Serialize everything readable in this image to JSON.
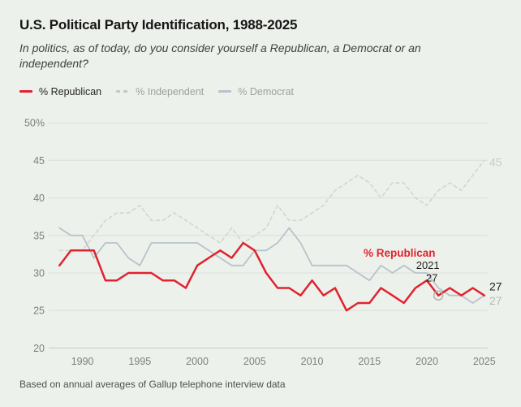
{
  "header": {
    "title": "U.S. Political Party Identification, 1988-2025",
    "subtitle": "In politics, as of today, do you consider yourself a Republican, a Democrat or an independent?"
  },
  "legend": [
    {
      "label": "% Republican"
    },
    {
      "label": "% Independent"
    },
    {
      "label": "% Democrat"
    }
  ],
  "chart_data": {
    "type": "line",
    "x_start_year": 1988,
    "x": [
      1988,
      1989,
      1990,
      1991,
      1992,
      1993,
      1994,
      1995,
      1996,
      1997,
      1998,
      1999,
      2000,
      2001,
      2002,
      2003,
      2004,
      2005,
      2006,
      2007,
      2008,
      2009,
      2010,
      2011,
      2012,
      2013,
      2014,
      2015,
      2016,
      2017,
      2018,
      2019,
      2020,
      2021,
      2022,
      2023,
      2024,
      2025
    ],
    "series": [
      {
        "name": "Independent",
        "key": "independent",
        "color": "#d2d8d0",
        "dash": "4,4",
        "width": 1.7,
        "values": [
          33,
          33,
          33,
          35,
          37,
          38,
          38,
          39,
          37,
          37,
          38,
          37,
          36,
          35,
          34,
          36,
          34,
          35,
          36,
          39,
          37,
          37,
          38,
          39,
          41,
          42,
          43,
          42,
          40,
          42,
          42,
          40,
          39,
          41,
          42,
          41,
          43,
          45
        ]
      },
      {
        "name": "Democrat",
        "key": "democrat",
        "color": "#b8c2cb",
        "dash": "",
        "width": 1.8,
        "values": [
          36,
          35,
          35,
          32,
          34,
          34,
          32,
          31,
          34,
          34,
          34,
          34,
          34,
          33,
          32,
          31,
          31,
          33,
          33,
          34,
          36,
          34,
          31,
          31,
          31,
          31,
          30,
          29,
          31,
          30,
          31,
          30,
          30,
          28,
          27,
          27,
          26,
          27
        ]
      },
      {
        "name": "Republican",
        "key": "republican",
        "color": "#e02330",
        "dash": "",
        "width": 2.5,
        "values": [
          31,
          33,
          33,
          33,
          29,
          29,
          30,
          30,
          30,
          29,
          29,
          28,
          31,
          32,
          33,
          32,
          34,
          33,
          30,
          28,
          28,
          27,
          29,
          27,
          28,
          25,
          26,
          26,
          28,
          27,
          26,
          28,
          29,
          27,
          28,
          27,
          28,
          27
        ]
      }
    ],
    "ylim": [
      20,
      50
    ],
    "yticks": [
      {
        "value": 50,
        "label": "50%"
      },
      {
        "value": 45,
        "label": "45"
      },
      {
        "value": 40,
        "label": "40"
      },
      {
        "value": 35,
        "label": "35"
      },
      {
        "value": 30,
        "label": "30"
      },
      {
        "value": 25,
        "label": "25"
      },
      {
        "value": 20,
        "label": "20"
      }
    ],
    "xticks": [
      {
        "value": 1990,
        "label": "1990"
      },
      {
        "value": 1995,
        "label": "1995"
      },
      {
        "value": 2000,
        "label": "2000"
      },
      {
        "value": 2005,
        "label": "2005"
      },
      {
        "value": 2010,
        "label": "2010"
      },
      {
        "value": 2015,
        "label": "2015"
      },
      {
        "value": 2020,
        "label": "2020"
      },
      {
        "value": 2025,
        "label": "2025"
      }
    ],
    "grid": "horizontal-only",
    "legend_position": "top-left",
    "annotations": {
      "series_label": {
        "text": "% Republican",
        "color": "#e02330"
      },
      "callout": {
        "year_text": "2021",
        "value_text": "27",
        "year": 2021,
        "value": 27,
        "series": "republican"
      },
      "end_labels": [
        {
          "series": "republican",
          "text": "27",
          "color": "#1f1f1f",
          "value": 27
        },
        {
          "series": "democrat",
          "text": "27",
          "color": "#b2bab4",
          "value": 27
        },
        {
          "series": "independent",
          "text": "45",
          "color": "#c7cdc5",
          "value": 45
        }
      ]
    }
  },
  "footer": {
    "source": "Based on annual averages of Gallup telephone interview data"
  }
}
